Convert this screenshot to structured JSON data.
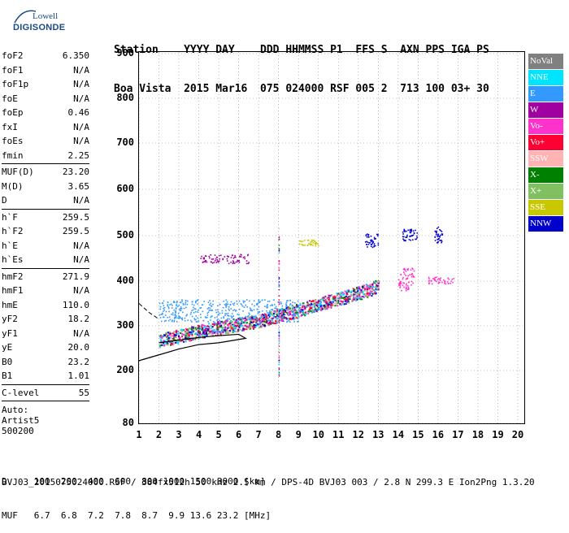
{
  "logo": {
    "line1": "Lowell",
    "line2": "DIGISONDE"
  },
  "header": {
    "line1": "Station    YYYY DAY    DDD HHMMSS P1  FFS S  AXN PPS IGA PS",
    "line2": "Boa Vista  2015 Mar16  075 024000 RSF 005 2  713 100 03+ 30"
  },
  "params": [
    {
      "group": [
        {
          "name": "foF2",
          "value": "6.350"
        },
        {
          "name": "foF1",
          "value": "N/A"
        },
        {
          "name": "foF1p",
          "value": "N/A"
        },
        {
          "name": "foE",
          "value": "N/A"
        },
        {
          "name": "foEp",
          "value": "0.46"
        },
        {
          "name": "fxI",
          "value": "N/A"
        },
        {
          "name": "foEs",
          "value": "N/A"
        },
        {
          "name": "fmin",
          "value": "2.25"
        }
      ]
    },
    {
      "group": [
        {
          "name": "MUF(D)",
          "value": "23.20"
        },
        {
          "name": "M(D)",
          "value": "3.65"
        },
        {
          "name": "D",
          "value": "N/A"
        }
      ]
    },
    {
      "group": [
        {
          "name": "h`F",
          "value": "259.5"
        },
        {
          "name": "h`F2",
          "value": "259.5"
        },
        {
          "name": "h`E",
          "value": "N/A"
        },
        {
          "name": "h`Es",
          "value": "N/A"
        }
      ]
    },
    {
      "group": [
        {
          "name": "hmF2",
          "value": "271.9"
        },
        {
          "name": "hmF1",
          "value": "N/A"
        },
        {
          "name": "hmE",
          "value": "110.0"
        },
        {
          "name": "yF2",
          "value": "18.2"
        },
        {
          "name": "yF1",
          "value": "N/A"
        },
        {
          "name": "yE",
          "value": "20.0"
        },
        {
          "name": "B0",
          "value": "23.2"
        },
        {
          "name": "B1",
          "value": "1.01"
        }
      ]
    },
    {
      "group": [
        {
          "name": "C-level",
          "value": "55"
        }
      ]
    }
  ],
  "extra": {
    "auto": "Auto:",
    "artist": "Artist5",
    "code": "500200"
  },
  "legend": [
    {
      "label": "NoVal",
      "color": "#808080"
    },
    {
      "label": "NNE",
      "color": "#00e5ff"
    },
    {
      "label": "E",
      "color": "#3399ff"
    },
    {
      "label": "W",
      "color": "#a000a0"
    },
    {
      "label": "Vo-",
      "color": "#ff33cc"
    },
    {
      "label": "Vo+",
      "color": "#ff0033"
    },
    {
      "label": "SSW",
      "color": "#ffb3b3"
    },
    {
      "label": "X-",
      "color": "#008000"
    },
    {
      "label": "X+",
      "color": "#80c060"
    },
    {
      "label": "SSE",
      "color": "#c8c800"
    },
    {
      "label": "NNW",
      "color": "#0000cc"
    }
  ],
  "chart_data": {
    "type": "scatter",
    "xlim": [
      1,
      20
    ],
    "ylim": [
      80,
      900
    ],
    "x_ticks": [
      1,
      2,
      3,
      4,
      5,
      6,
      7,
      8,
      9,
      10,
      11,
      12,
      13,
      14,
      15,
      16,
      17,
      18,
      19,
      20
    ],
    "y_ticks": [
      80,
      200,
      300,
      400,
      500,
      600,
      700,
      800,
      900
    ],
    "grid": true,
    "trace_F2": {
      "x": [
        2.0,
        3.0,
        4.0,
        5.0,
        6.0,
        7.0,
        8.0,
        9.0,
        10.0,
        11.0,
        12.0,
        12.5,
        13.0
      ],
      "y": [
        262,
        272,
        282,
        290,
        298,
        306,
        318,
        330,
        343,
        355,
        368,
        375,
        385
      ]
    },
    "echo_clusters": [
      {
        "x": [
          12.3,
          13.0
        ],
        "y": [
          475,
          505
        ],
        "color": "#0000cc"
      },
      {
        "x": [
          14.2,
          15.0
        ],
        "y": [
          490,
          515
        ],
        "color": "#0000cc"
      },
      {
        "x": [
          15.8,
          16.2
        ],
        "y": [
          485,
          520
        ],
        "color": "#0000cc"
      },
      {
        "x": [
          14.0,
          14.8
        ],
        "y": [
          380,
          430
        ],
        "color": "#ff33cc"
      },
      {
        "x": [
          15.5,
          16.8
        ],
        "y": [
          395,
          410
        ],
        "color": "#ff33cc"
      },
      {
        "x": [
          4.0,
          6.5
        ],
        "y": [
          440,
          460
        ],
        "color": "#a000a0"
      },
      {
        "x": [
          9.0,
          10.0
        ],
        "y": [
          478,
          492
        ],
        "color": "#c8c800"
      },
      {
        "x": [
          2.0,
          9.0
        ],
        "y": [
          310,
          360
        ],
        "color": "#3399ff"
      }
    ],
    "profile": {
      "x": [
        2.0,
        3.0,
        4.0,
        5.0,
        6.0,
        6.35,
        5.0,
        4.0,
        3.0,
        2.0,
        1.0
      ],
      "y": [
        262,
        268,
        274,
        278,
        281,
        272,
        262,
        258,
        248,
        235,
        222
      ]
    },
    "profile_upper": {
      "x": [
        1.0,
        1.5,
        2.0
      ],
      "y": [
        350,
        330,
        315
      ]
    }
  },
  "bottom": {
    "line1": "D     100  200  400  600  800 1000 1500 3000 [km]",
    "line2": "MUF   6.7  6.8  7.2  7.8  8.7  9.9 13.6 23.2 [MHz]"
  },
  "footer": "BVJ03_2015075024000.RSF / 384fx512h 50 kHz 2.5 km / DPS-4D BVJ03 003 / 2.8 N 299.3 E Ion2Png 1.3.20"
}
